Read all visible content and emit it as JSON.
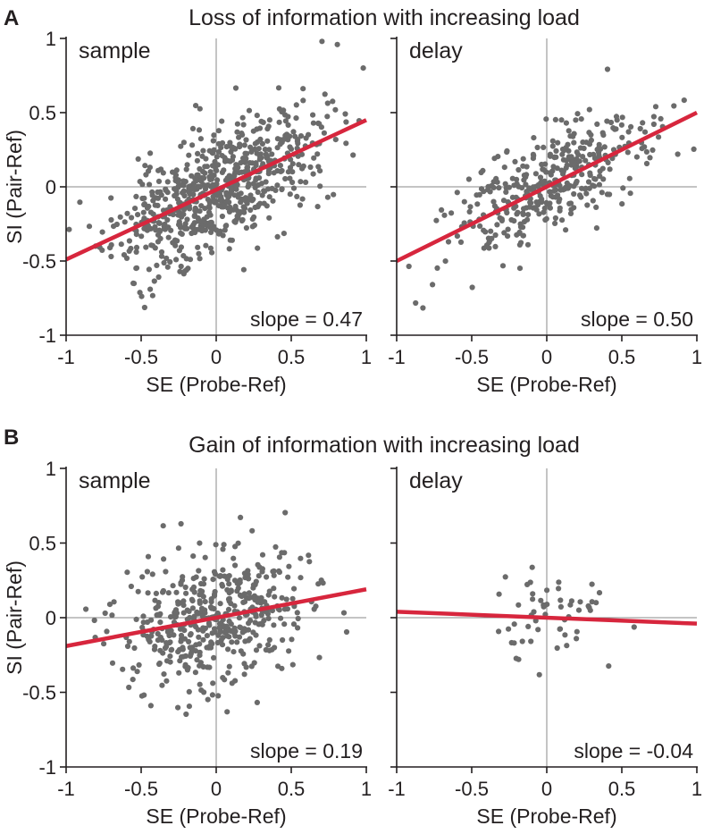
{
  "figure": {
    "rows": [
      {
        "letter": "A",
        "title": "Loss of information with increasing load",
        "panels": [
          {
            "key": "sample",
            "title": "sample",
            "slope_label": "slope = 0.47",
            "slope": 0.47,
            "intercept": -0.02,
            "n_points": 700,
            "spread_x": 0.34,
            "noise": 0.2,
            "seed": 11
          },
          {
            "key": "delay",
            "title": "delay",
            "slope_label": "slope = 0.50",
            "slope": 0.5,
            "intercept": 0.0,
            "n_points": 380,
            "spread_x": 0.32,
            "noise": 0.18,
            "seed": 23
          }
        ]
      },
      {
        "letter": "B",
        "title": "Gain of information with increasing load",
        "panels": [
          {
            "key": "sample",
            "title": "sample",
            "slope_label": "slope = 0.19",
            "slope": 0.19,
            "intercept": 0.0,
            "n_points": 480,
            "spread_x": 0.3,
            "noise": 0.22,
            "seed": 37
          },
          {
            "key": "delay",
            "title": "delay",
            "slope_label": "slope = -0.04",
            "slope": -0.04,
            "intercept": 0.0,
            "n_points": 55,
            "spread_x": 0.2,
            "noise": 0.16,
            "seed": 51
          }
        ]
      }
    ],
    "ylabel": "SI (Pair-Ref)",
    "xlabel": "SE (Probe-Ref)",
    "xticks": [
      "-1",
      "-0.5",
      "0",
      "0.5",
      "1"
    ],
    "yticks": [
      "1",
      "0.5",
      "0",
      "-0.5",
      "-1"
    ]
  },
  "chart_data": [
    {
      "type": "scatter",
      "title": "sample",
      "group": "Loss of information with increasing load",
      "xlabel": "SE (Probe-Ref)",
      "ylabel": "SI (Pair-Ref)",
      "xlim": [
        -1,
        1
      ],
      "ylim": [
        -1,
        1
      ],
      "fit": {
        "slope": 0.47,
        "intercept": -0.02
      },
      "annotation": "slope = 0.47"
    },
    {
      "type": "scatter",
      "title": "delay",
      "group": "Loss of information with increasing load",
      "xlabel": "SE (Probe-Ref)",
      "ylabel": "SI (Pair-Ref)",
      "xlim": [
        -1,
        1
      ],
      "ylim": [
        -1,
        1
      ],
      "fit": {
        "slope": 0.5,
        "intercept": 0.0
      },
      "annotation": "slope = 0.50"
    },
    {
      "type": "scatter",
      "title": "sample",
      "group": "Gain of information with increasing load",
      "xlabel": "SE (Probe-Ref)",
      "ylabel": "SI (Pair-Ref)",
      "xlim": [
        -1,
        1
      ],
      "ylim": [
        -1,
        1
      ],
      "fit": {
        "slope": 0.19,
        "intercept": 0.0
      },
      "annotation": "slope = 0.19"
    },
    {
      "type": "scatter",
      "title": "delay",
      "group": "Gain of information with increasing load",
      "xlabel": "SE (Probe-Ref)",
      "ylabel": "SI (Pair-Ref)",
      "xlim": [
        -1,
        1
      ],
      "ylim": [
        -1,
        1
      ],
      "fit": {
        "slope": -0.04,
        "intercept": 0.0
      },
      "annotation": "slope = -0.04"
    }
  ],
  "colors": {
    "point": "#6b6b6b",
    "fit": "#d7263d",
    "axis": "#231f20",
    "refline": "#8a8a8a"
  }
}
